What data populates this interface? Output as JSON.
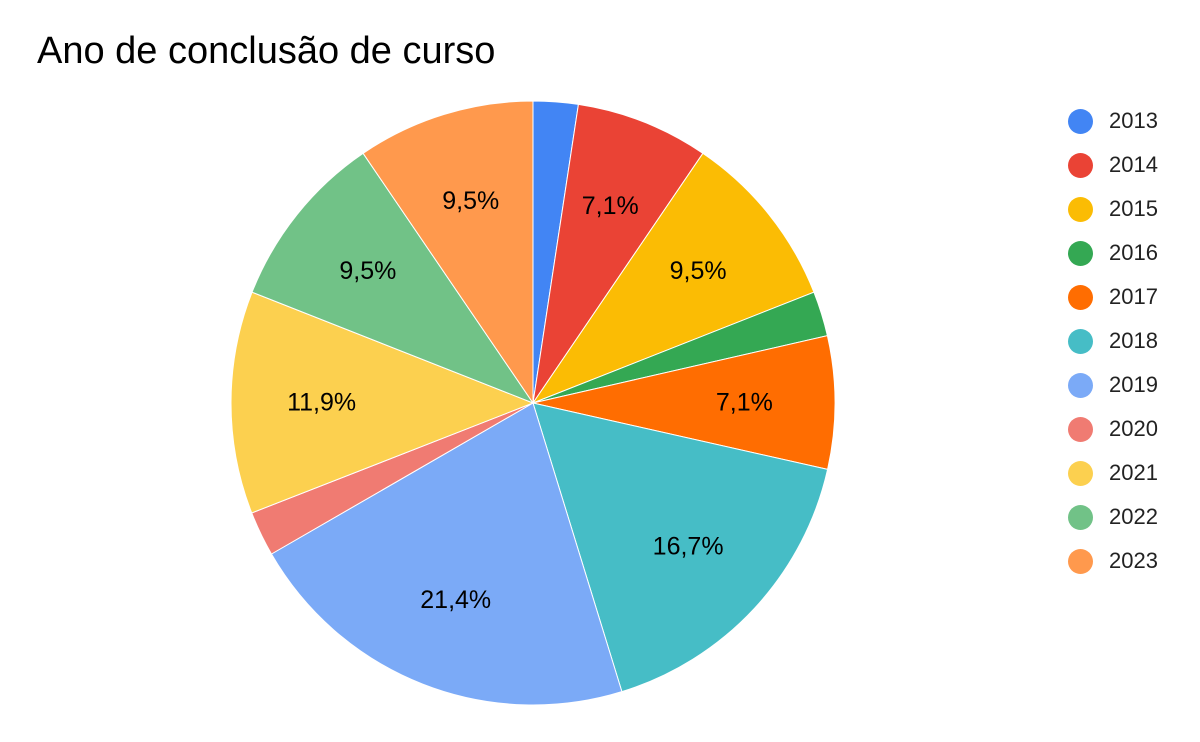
{
  "chart_data": {
    "type": "pie",
    "title": "Ano de conclusão de curso",
    "legend_position": "right",
    "start_angle_deg": 0,
    "direction": "clockwise",
    "slices": [
      {
        "label": "2013",
        "value": 2.4,
        "data_label": "",
        "color": "#4285F4"
      },
      {
        "label": "2014",
        "value": 7.1,
        "data_label": "7,1%",
        "color": "#EA4335"
      },
      {
        "label": "2015",
        "value": 9.5,
        "data_label": "9,5%",
        "color": "#FBBC04"
      },
      {
        "label": "2016",
        "value": 2.4,
        "data_label": "",
        "color": "#34A853"
      },
      {
        "label": "2017",
        "value": 7.1,
        "data_label": "7,1%",
        "color": "#FF6D01"
      },
      {
        "label": "2018",
        "value": 16.7,
        "data_label": "16,7%",
        "color": "#46BDC6"
      },
      {
        "label": "2019",
        "value": 21.4,
        "data_label": "21,4%",
        "color": "#7BAAF7"
      },
      {
        "label": "2020",
        "value": 2.4,
        "data_label": "",
        "color": "#F07B72"
      },
      {
        "label": "2021",
        "value": 11.9,
        "data_label": "11,9%",
        "color": "#FCD04F"
      },
      {
        "label": "2022",
        "value": 9.5,
        "data_label": "9,5%",
        "color": "#71C287"
      },
      {
        "label": "2023",
        "value": 9.5,
        "data_label": "9,5%",
        "color": "#FF994D"
      }
    ]
  }
}
